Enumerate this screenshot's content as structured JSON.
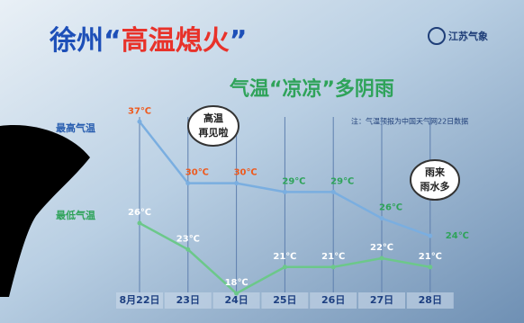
{
  "chart_data": {
    "type": "line",
    "title_parts": [
      "徐州“",
      "高温熄火",
      "”"
    ],
    "subtitle": "气温“凉凉”多阴雨",
    "logo": "江苏气象",
    "note": "注：气温预报为中国天气网22日数据",
    "bubbles": [
      [
        "高温",
        "再见啦"
      ],
      [
        "雨来",
        "雨水多"
      ]
    ],
    "categories": [
      "8月22日",
      "23日",
      "24日",
      "25日",
      "26日",
      "27日",
      "28日"
    ],
    "ylim": [
      15,
      40
    ],
    "y2lim": [
      10,
      35
    ],
    "series": [
      {
        "name": "最高气温",
        "color": "#7aaee0",
        "values": [
          37,
          30,
          30,
          29,
          29,
          26,
          24
        ],
        "value_labels": [
          "37℃",
          "30℃",
          "30℃",
          "29℃",
          "29℃",
          "26℃",
          "24℃"
        ],
        "label_colors": [
          "#ee5a1e",
          "#ee5a1e",
          "#ee5a1e",
          "#2fa35a",
          "#2fa35a",
          "#2fa35a",
          "#2fa35a"
        ]
      },
      {
        "name": "最低气温",
        "color": "#6cc88a",
        "axis": "y2",
        "values": [
          26,
          23,
          18,
          21,
          21,
          22,
          21
        ],
        "value_labels": [
          "26℃",
          "23℃",
          "18℃",
          "21℃",
          "21℃",
          "22℃",
          "21℃"
        ],
        "label_colors": [
          "#ffffff",
          "#ffffff",
          "#ffffff",
          "#ffffff",
          "#ffffff",
          "#ffffff",
          "#ffffff"
        ]
      }
    ]
  }
}
